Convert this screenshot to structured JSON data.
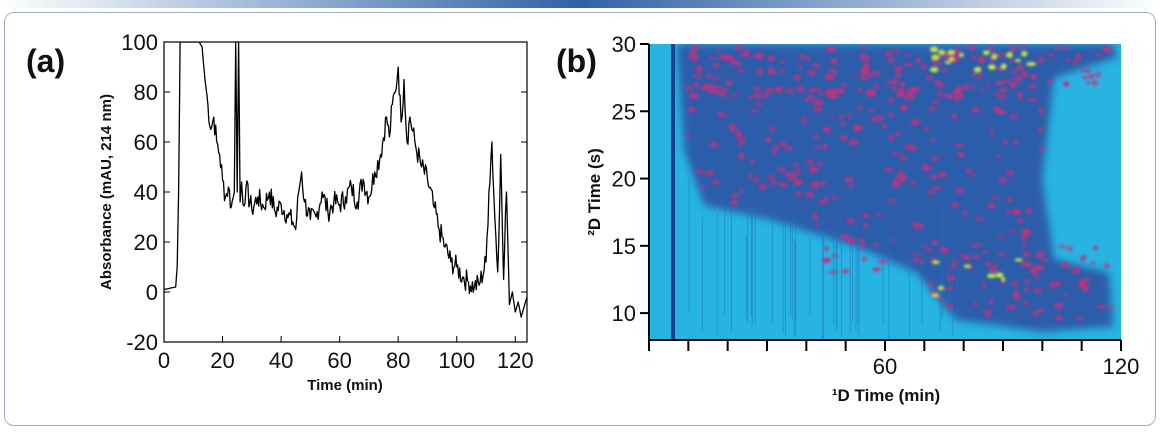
{
  "colors": {
    "top_bar": "#2e62a8",
    "frame_border": "#9fb0c6",
    "trace": "#000000",
    "heatmap_background": "#27b4e2",
    "heatmap_band": "#2b5aa8",
    "heatmap_peak": "#c8307c",
    "heatmap_hot": "#d8ee32"
  },
  "chart_data": [
    {
      "panel_label": "(a)",
      "type": "line",
      "xlabel": "Time (min)",
      "ylabel": "Absorbance (mAU, 214 nm)",
      "xlim": [
        0,
        124
      ],
      "ylim": [
        -20,
        100
      ],
      "xticks": [
        0,
        20,
        40,
        60,
        80,
        100,
        120
      ],
      "yticks": [
        -20,
        0,
        20,
        40,
        60,
        80,
        100
      ],
      "xtick_labels": [
        "0",
        "20",
        "40",
        "60",
        "80",
        "100",
        "120"
      ],
      "ytick_labels": [
        "-20",
        "0",
        "20",
        "40",
        "60",
        "80",
        "100"
      ],
      "grid": false,
      "series": [
        {
          "x": [
            0,
            4,
            4.5,
            5,
            5.5,
            6,
            6.5,
            7,
            8,
            9,
            10,
            11,
            12,
            13,
            14,
            15,
            16,
            17,
            18,
            19,
            20,
            21,
            22,
            23,
            24,
            24.5,
            25,
            25.5,
            26,
            26.5,
            27,
            28,
            30,
            32,
            34,
            36,
            38,
            40,
            42,
            44,
            45,
            46,
            47,
            48,
            50,
            52,
            54,
            56,
            58,
            60,
            62,
            64,
            66,
            68,
            70,
            72,
            74,
            76,
            77,
            78,
            79,
            80,
            81,
            82,
            83,
            84,
            86,
            88,
            90,
            92,
            94,
            96,
            98,
            100,
            102,
            104,
            106,
            108,
            110,
            111,
            112,
            113,
            114,
            115,
            116,
            117,
            118,
            119,
            120,
            121,
            122,
            123,
            124
          ],
          "y": [
            1,
            2,
            10,
            40,
            100,
            100,
            100,
            100,
            100,
            100,
            100,
            100,
            100,
            98,
            85,
            75,
            65,
            70,
            60,
            55,
            45,
            38,
            42,
            34,
            40,
            100,
            40,
            100,
            36,
            44,
            35,
            42,
            33,
            38,
            34,
            40,
            32,
            35,
            31,
            28,
            25,
            40,
            48,
            36,
            29,
            30,
            40,
            32,
            36,
            35,
            38,
            42,
            36,
            45,
            38,
            48,
            55,
            70,
            62,
            75,
            80,
            90,
            68,
            85,
            60,
            70,
            58,
            50,
            45,
            35,
            25,
            18,
            12,
            10,
            6,
            4,
            2,
            4,
            12,
            40,
            60,
            30,
            8,
            55,
            5,
            40,
            -5,
            0,
            -8,
            -4,
            -10,
            -6,
            -2
          ]
        }
      ]
    },
    {
      "panel_label": "(b)",
      "type": "heatmap",
      "xlabel": "¹D Time (min)",
      "ylabel": "²D Time (s)",
      "xlim": [
        0,
        120
      ],
      "ylim": [
        8,
        30
      ],
      "xticks_labeled": [
        60,
        120
      ],
      "xtick_labels": [
        "60",
        "120"
      ],
      "yticks": [
        10,
        15,
        20,
        25,
        30
      ],
      "ytick_labels": [
        "10",
        "15",
        "20",
        "25",
        "30"
      ],
      "minor_xtick_step": 10,
      "grid": false
    }
  ]
}
